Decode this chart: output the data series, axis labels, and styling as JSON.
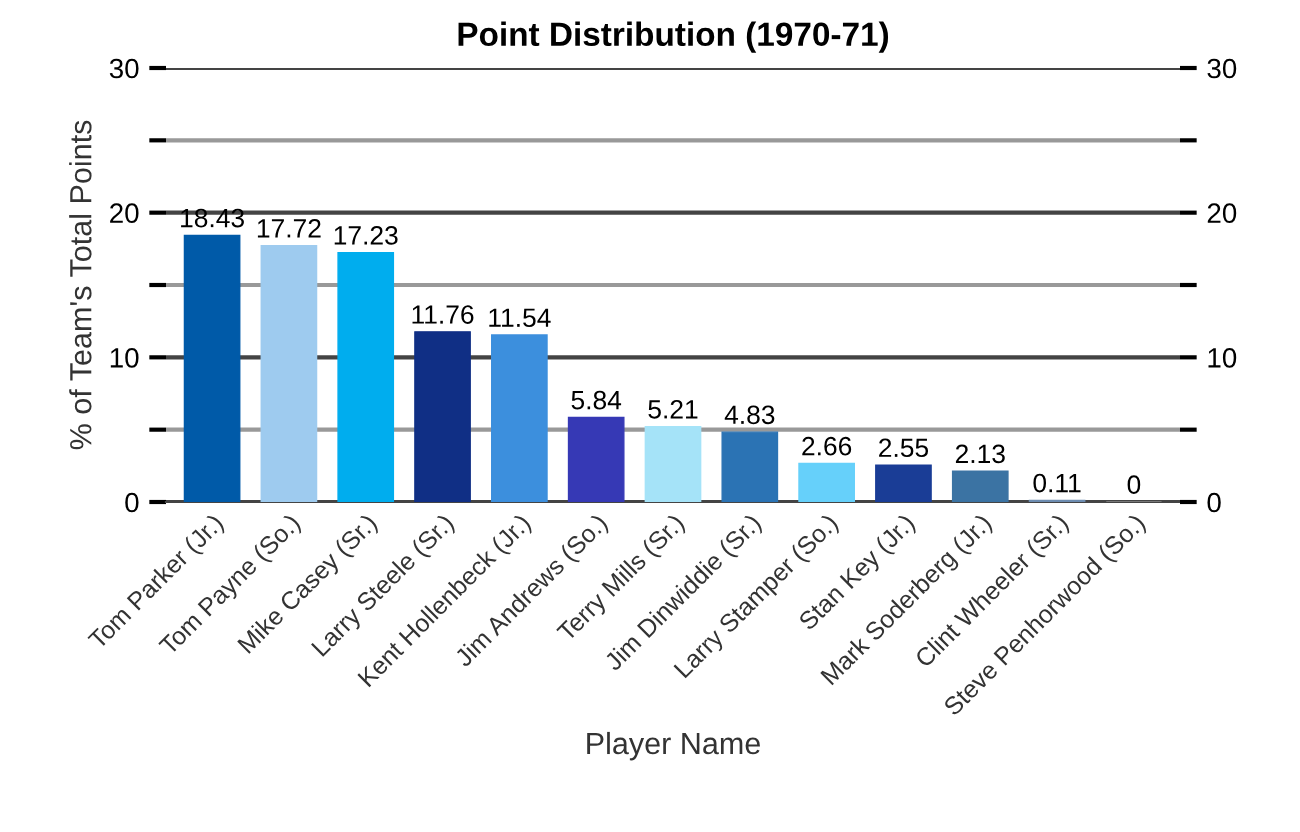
{
  "chart_data": {
    "type": "bar",
    "title": "Point Distribution (1970-71)",
    "xlabel": "Player Name",
    "ylabel": "% of Team's Total Points",
    "categories": [
      "Tom Parker (Jr.)",
      "Tom Payne (So.)",
      "Mike Casey (Sr.)",
      "Larry Steele (Sr.)",
      "Kent Hollenbeck (Jr.)",
      "Jim Andrews (So.)",
      "Terry Mills (Sr.)",
      "Jim Dinwiddie (Sr.)",
      "Larry Stamper (So.)",
      "Stan Key (Jr.)",
      "Mark Soderberg (Jr.)",
      "Clint Wheeler (Sr.)",
      "Steve Penhorwood (So.)"
    ],
    "values": [
      18.43,
      17.72,
      17.23,
      11.76,
      11.54,
      5.84,
      5.21,
      4.83,
      2.66,
      2.55,
      2.13,
      0.11,
      0
    ],
    "colors": [
      "#005aa8",
      "#9ecbef",
      "#00adee",
      "#102f85",
      "#3c8fdd",
      "#3639b5",
      "#a5e3f8",
      "#2b73b4",
      "#66d0fa",
      "#1a3d96",
      "#3b73a3",
      "#6d8cb0",
      "#888888"
    ],
    "data_labels": true,
    "grid": "y",
    "ylim": [
      0,
      30
    ],
    "yticks": [
      0,
      {
        "value": 5,
        "label": null
      },
      10,
      {
        "value": 15,
        "label": null
      },
      20,
      {
        "value": 25,
        "label": null
      },
      30
    ],
    "y2lim": [
      0,
      30
    ],
    "y2ticks": [
      0,
      {
        "value": 5,
        "label": null
      },
      10,
      {
        "value": 15,
        "label": null
      },
      20,
      {
        "value": 25,
        "label": null
      },
      30
    ]
  }
}
